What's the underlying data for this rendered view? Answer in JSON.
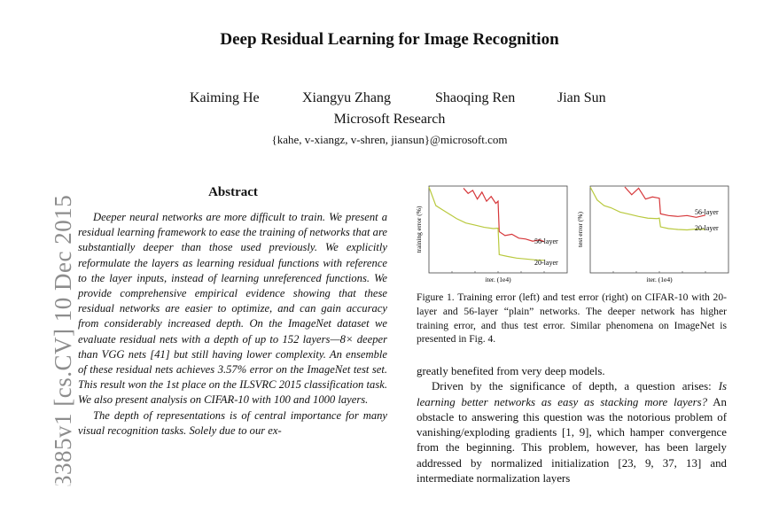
{
  "paper": {
    "title": "Deep Residual Learning for Image Recognition",
    "authors": [
      "Kaiming He",
      "Xiangyu Zhang",
      "Shaoqing Ren",
      "Jian Sun"
    ],
    "affiliation": "Microsoft Research",
    "email": "{kahe, v-xiangz, v-shren, jiansun}@microsoft.com",
    "arxiv_stamp": "3385v1  [cs.CV]  10 Dec 2015"
  },
  "abstract": {
    "heading": "Abstract",
    "p1": "Deeper neural networks are more difficult to train. We present a residual learning framework to ease the training of networks that are substantially deeper than those used previously. We explicitly reformulate the layers as learning residual functions with reference to the layer inputs, instead of learning unreferenced functions. We provide comprehensive empirical evidence showing that these residual networks are easier to optimize, and can gain accuracy from considerably increased depth. On the ImageNet dataset we evaluate residual nets with a depth of up to 152 layers—8× deeper than VGG nets [41] but still having lower complexity. An ensemble of these residual nets achieves 3.57% error on the ImageNet test set. This result won the 1st place on the ILSVRC 2015 classification task. We also present analysis on CIFAR-10 with 100 and 1000 layers.",
    "p2": "The depth of representations is of central importance for many visual recognition tasks. Solely due to our ex-"
  },
  "figure": {
    "caption": "Figure 1. Training error (left) and test error (right) on CIFAR-10 with 20-layer and 56-layer “plain” networks. The deeper network has higher training error, and thus test error. Similar phenomena on ImageNet is presented in Fig. 4.",
    "left_ylabel": "training error (%)",
    "right_ylabel": "test error (%)",
    "xlabel": "iter. (1e4)",
    "label_56": "56-layer",
    "label_20": "20-layer",
    "color_56": "#d6373a",
    "color_20": "#b9c93e"
  },
  "chart_data": [
    {
      "type": "line",
      "xlabel": "iter. (1e4)",
      "ylabel": "training error (%)",
      "xlim": [
        0,
        6
      ],
      "ylim": [
        0,
        20
      ],
      "series": [
        {
          "name": "56-layer",
          "color": "#d6373a",
          "x": [
            1.5,
            1.7,
            1.9,
            2.1,
            2.3,
            2.5,
            2.7,
            2.9,
            3.0,
            3.05,
            3.3,
            3.6,
            3.9,
            4.2,
            4.5,
            4.8,
            5.0
          ],
          "y": [
            19.5,
            18.3,
            19.0,
            17.0,
            18.6,
            16.5,
            17.6,
            16.0,
            16.5,
            9.5,
            8.6,
            8.9,
            8.0,
            7.8,
            7.3,
            7.6,
            7.2
          ]
        },
        {
          "name": "20-layer",
          "color": "#b9c93e",
          "x": [
            0.0,
            0.3,
            0.6,
            0.9,
            1.2,
            1.6,
            2.0,
            2.4,
            2.8,
            3.0,
            3.05,
            3.4,
            3.8,
            4.2,
            4.6,
            5.0
          ],
          "y": [
            19.8,
            15.5,
            14.5,
            13.5,
            12.5,
            11.5,
            11.0,
            10.5,
            10.2,
            10.3,
            4.2,
            3.8,
            3.4,
            3.2,
            3.0,
            2.9
          ]
        }
      ]
    },
    {
      "type": "line",
      "xlabel": "iter. (1e4)",
      "ylabel": "test error (%)",
      "xlim": [
        0,
        6
      ],
      "ylim": [
        0,
        20
      ],
      "series": [
        {
          "name": "56-layer",
          "color": "#d6373a",
          "x": [
            1.5,
            1.8,
            2.1,
            2.4,
            2.7,
            3.0,
            3.05,
            3.4,
            3.8,
            4.2,
            4.6,
            5.0
          ],
          "y": [
            19.8,
            18.0,
            19.5,
            17.0,
            17.5,
            17.2,
            13.6,
            13.2,
            13.0,
            13.2,
            12.8,
            13.3
          ]
        },
        {
          "name": "20-layer",
          "color": "#b9c93e",
          "x": [
            0.0,
            0.3,
            0.6,
            0.9,
            1.3,
            1.7,
            2.1,
            2.5,
            2.9,
            3.0,
            3.05,
            3.4,
            3.8,
            4.2,
            4.6,
            5.0
          ],
          "y": [
            19.8,
            16.8,
            15.5,
            15.0,
            14.0,
            13.5,
            13.0,
            12.6,
            12.5,
            12.6,
            10.6,
            10.2,
            10.0,
            9.9,
            10.1,
            10.0
          ]
        }
      ]
    }
  ],
  "right_column": {
    "p1": "greatly benefited from very deep models.",
    "p2_start": "Driven by the significance of depth, a question arises: ",
    "p2_question": "Is learning better networks as easy as stacking more layers?",
    "p2_rest": " An obstacle to answering this question was the notorious problem of vanishing/exploding gradients [1, 9], which hamper convergence from the beginning. This problem, however, has been largely addressed by normalized initialization [23, 9, 37, 13] and intermediate normalization layers"
  }
}
